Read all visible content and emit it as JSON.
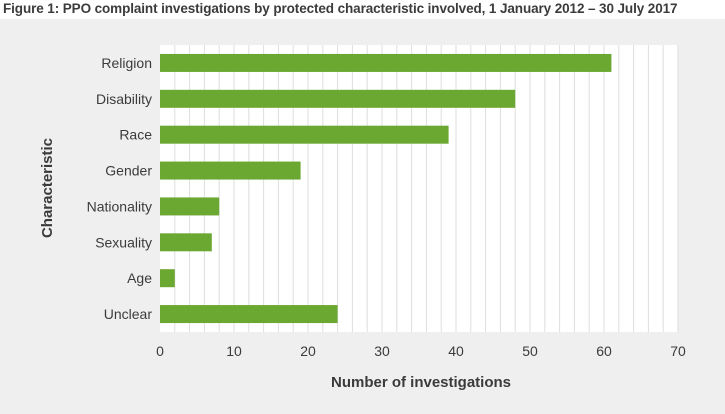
{
  "figure_title": "Figure 1: PPO complaint investigations by protected characteristic involved, 1 January 2012 – 30 July 2017",
  "colors": {
    "bar": "#6aa832",
    "panel_background": "#efefef",
    "plot_background": "#ffffff",
    "grid": "#dedede",
    "text": "#3b3b3b"
  },
  "chart_data": {
    "type": "bar",
    "orientation": "horizontal",
    "title": "Figure 1: PPO complaint investigations by protected characteristic involved, 1 January 2012 – 30 July 2017",
    "xlabel": "Number of investigations",
    "ylabel": "Characteristic",
    "categories": [
      "Religion",
      "Disability",
      "Race",
      "Gender",
      "Nationality",
      "Sexuality",
      "Age",
      "Unclear"
    ],
    "values": [
      61,
      48,
      39,
      19,
      8,
      7,
      2,
      24
    ],
    "xlim": [
      0,
      70
    ],
    "xticks": [
      "0",
      "10",
      "20",
      "30",
      "40",
      "50",
      "60",
      "70"
    ],
    "grid": true,
    "legend": "none"
  }
}
